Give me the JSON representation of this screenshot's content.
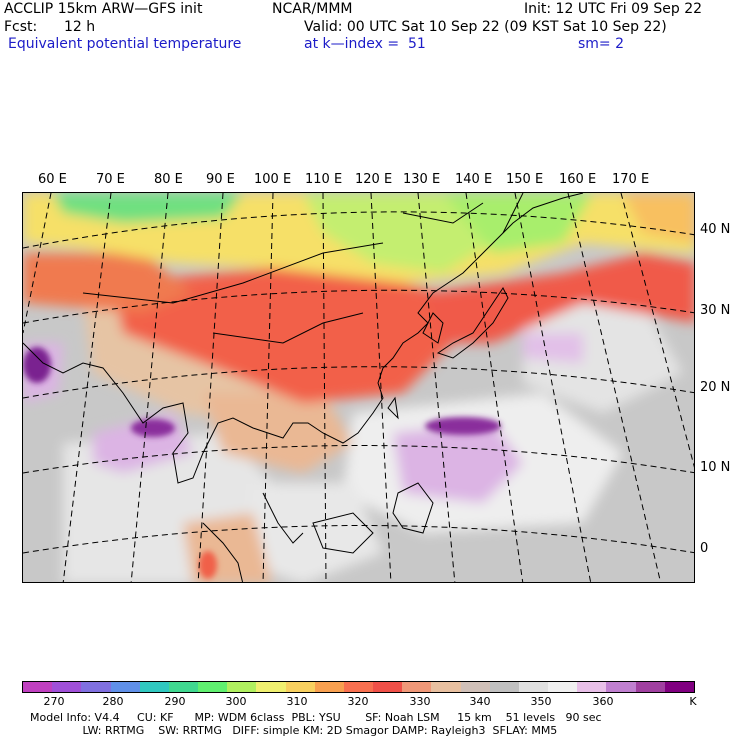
{
  "header": {
    "model": "ACCLIP 15km ARW—GFS init",
    "org": "NCAR/MMM",
    "init": "Init: 12 UTC Fri 09 Sep 22",
    "fcst_label": "Fcst:",
    "fcst_value": "12 h",
    "valid": "Valid: 00 UTC Sat 10 Sep 22 (09 KST Sat 10 Sep 22)",
    "field": "Equivalent potential temperature",
    "level": "at k—index =  51",
    "smooth": "sm= 2"
  },
  "map": {
    "longitude_labels": [
      "60 E",
      "70 E",
      "80 E",
      "90 E",
      "100 E",
      "110 E",
      "120 E",
      "130 E",
      "140 E",
      "150 E",
      "160 E",
      "170 E"
    ],
    "latitude_labels": [
      "40 N",
      "30 N",
      "20 N",
      "10 N",
      "0"
    ]
  },
  "colorbar": {
    "unit": "K",
    "tick_labels": [
      "270",
      "280",
      "290",
      "300",
      "310",
      "320",
      "330",
      "340",
      "350",
      "360"
    ],
    "colors": [
      "#c040c0",
      "#a050d8",
      "#8070e0",
      "#6090e8",
      "#30c8c0",
      "#40d890",
      "#60f070",
      "#b0f060",
      "#f0f070",
      "#f8d060",
      "#f8a050",
      "#f87050",
      "#f05048",
      "#f09878",
      "#e8c0a0",
      "#d0c0b8",
      "#c0c0c0",
      "#e0e0e0",
      "#f0f0f0",
      "#e8c0e8",
      "#c080d0",
      "#a040a0",
      "#800080"
    ]
  },
  "footer": {
    "line1": "Model Info: V4.4     CU: KF      MP: WDM 6class  PBL: YSU       SF: Noah LSM     15 km    51 levels   90 sec",
    "line2": "               LW: RRTMG    SW: RRTMG   DIFF: simple KM: 2D Smagor DAMP: Rayleigh3  SFLAY: MM5"
  }
}
